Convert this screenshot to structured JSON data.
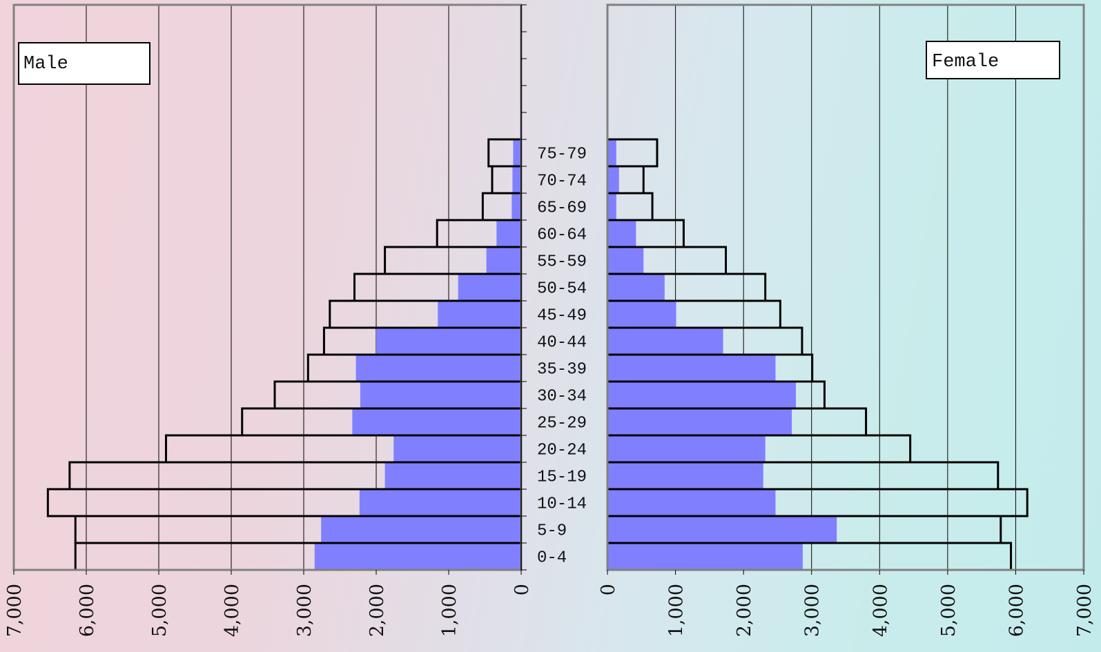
{
  "chart_data": {
    "type": "bar",
    "subtype": "population-pyramid",
    "categories": [
      "0-4",
      "5-9",
      "10-14",
      "15-19",
      "20-24",
      "25-29",
      "30-34",
      "35-39",
      "40-44",
      "45-49",
      "50-54",
      "55-59",
      "60-64",
      "65-69",
      "70-74",
      "75-79"
    ],
    "panels": [
      {
        "name": "Male",
        "direction": "reversed",
        "xlim": [
          0,
          7000
        ],
        "ticks": [
          "0",
          "1,000",
          "2,000",
          "3,000",
          "4,000",
          "5,000",
          "6,000",
          "7,000"
        ],
        "tick_values": [
          0,
          1000,
          2000,
          3000,
          4000,
          5000,
          6000,
          7000
        ],
        "series": [
          {
            "role": "outline",
            "color": "none",
            "values": [
              6150,
              6150,
              6530,
              6230,
              4900,
              3850,
              3400,
              2940,
              2720,
              2640,
              2300,
              1880,
              1160,
              530,
              400,
              450
            ]
          },
          {
            "role": "filled",
            "color": "#8080ff",
            "values": [
              2850,
              2760,
              2230,
              1880,
              1760,
              2330,
              2220,
              2280,
              2000,
              1150,
              870,
              480,
              340,
              130,
              120,
              110
            ]
          }
        ]
      },
      {
        "name": "Female",
        "direction": "normal",
        "xlim": [
          0,
          7000
        ],
        "ticks": [
          "0",
          "1,000",
          "2,000",
          "3,000",
          "4,000",
          "5,000",
          "6,000",
          "7,000"
        ],
        "tick_values": [
          0,
          1000,
          2000,
          3000,
          4000,
          5000,
          6000,
          7000
        ],
        "series": [
          {
            "role": "outline",
            "color": "none",
            "values": [
              5930,
              5780,
              6170,
              5740,
              4450,
              3800,
              3190,
              3010,
              2860,
              2540,
              2320,
              1740,
              1120,
              660,
              530,
              730
            ]
          },
          {
            "role": "filled",
            "color": "#8080ff",
            "values": [
              2870,
              3370,
              2470,
              2290,
              2320,
              2710,
              2770,
              2470,
              1700,
              1010,
              840,
              530,
              420,
              130,
              170,
              130
            ]
          }
        ]
      }
    ],
    "legend": [
      "Male",
      "Female"
    ],
    "grid": true
  }
}
